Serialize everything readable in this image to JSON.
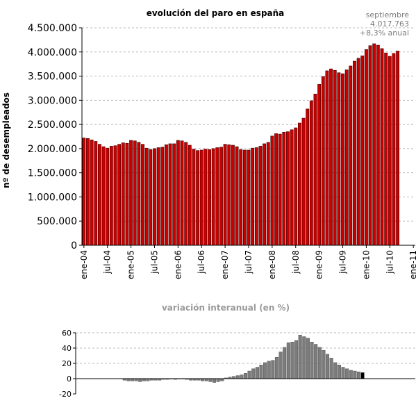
{
  "chart_data": [
    {
      "type": "bar",
      "title": "evolución del paro en españa",
      "ylabel": "nº de desempleados",
      "xlabel": "",
      "ylim": [
        0,
        4500000
      ],
      "yticks": [
        0,
        500000,
        1000000,
        1500000,
        2000000,
        2500000,
        3000000,
        3500000,
        4000000,
        4500000
      ],
      "ytick_labels": [
        "0",
        "500.000",
        "1.000.000",
        "1.500.000",
        "2.000.000",
        "2.500.000",
        "3.000.000",
        "3.500.000",
        "4.000.000",
        "4.500.000"
      ],
      "xtick_labels": [
        "ene-04",
        "jul-04",
        "ene-05",
        "jul-05",
        "ene-06",
        "jul-06",
        "ene-07",
        "jul-07",
        "ene-08",
        "jul-08",
        "ene-09",
        "jul-09",
        "ene-10",
        "jul-10",
        "ene-11"
      ],
      "x_start": "ene-04",
      "x_end": "ene-11",
      "grid": true,
      "bar_color": "#c80000",
      "annotation": [
        "septiembre",
        "4.017.763",
        "+8,3% anual"
      ],
      "values": [
        2220000,
        2210000,
        2180000,
        2150000,
        2090000,
        2040000,
        2010000,
        2050000,
        2060000,
        2090000,
        2120000,
        2110000,
        2170000,
        2160000,
        2130000,
        2090000,
        2010000,
        1980000,
        2000000,
        2020000,
        2030000,
        2080000,
        2100000,
        2100000,
        2170000,
        2160000,
        2130000,
        2070000,
        1990000,
        1960000,
        1970000,
        1990000,
        1980000,
        2000000,
        2020000,
        2030000,
        2090000,
        2080000,
        2070000,
        2040000,
        1980000,
        1970000,
        1970000,
        2010000,
        2020000,
        2050000,
        2100000,
        2130000,
        2260000,
        2310000,
        2300000,
        2340000,
        2350000,
        2390000,
        2430000,
        2530000,
        2630000,
        2820000,
        2990000,
        3130000,
        3330000,
        3490000,
        3610000,
        3650000,
        3620000,
        3570000,
        3550000,
        3630000,
        3710000,
        3810000,
        3870000,
        3920000,
        4050000,
        4130000,
        4170000,
        4140000,
        4070000,
        3980000,
        3910000,
        3970000,
        4020000
      ]
    },
    {
      "type": "bar",
      "title": "variación interanual (en %)",
      "ylim": [
        -20,
        60
      ],
      "yticks": [
        -20,
        0,
        20,
        40,
        60
      ],
      "ytick_labels": [
        "-20",
        "0",
        "20",
        "40",
        "60"
      ],
      "grid": true,
      "values": [
        -2,
        -3,
        -3,
        -3,
        -4,
        -3,
        -3,
        -2,
        -2,
        -2,
        -1,
        -1,
        0,
        -1,
        0,
        0,
        -1,
        -2,
        -2,
        -2,
        -3,
        -3,
        -4,
        -5,
        -4,
        -3,
        1,
        2,
        3,
        4,
        5,
        7,
        10,
        13,
        15,
        18,
        21,
        23,
        24,
        28,
        35,
        41,
        47,
        48,
        50,
        57,
        55,
        53,
        48,
        45,
        41,
        37,
        32,
        27,
        21,
        18,
        15,
        13,
        11,
        10,
        9,
        8
      ]
    }
  ]
}
